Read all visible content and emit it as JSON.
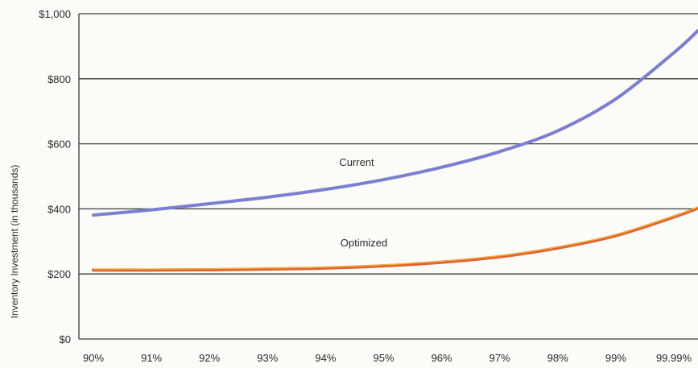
{
  "chart_data": {
    "type": "line",
    "ylabel": "Inventory Investment (in thousands)",
    "xlabel": "",
    "x_tick_labels": [
      "90%",
      "91%",
      "92%",
      "93%",
      "94%",
      "95%",
      "96%",
      "97%",
      "98%",
      "99%",
      "99.99%"
    ],
    "y_tick_labels": [
      "$0",
      "$200",
      "$400",
      "$600",
      "$800",
      "$1,000"
    ],
    "ylim": [
      0,
      1000
    ],
    "grid": true,
    "series": [
      {
        "name": "Current",
        "color": "#7b7fd0",
        "values": [
          381,
          397,
          416,
          436,
          460,
          490,
          528,
          576,
          640,
          738,
          880
        ]
      },
      {
        "name": "Optimized",
        "color": "#e2622d",
        "highlight_color": "#f2b33a",
        "values": [
          212,
          212,
          213,
          215,
          218,
          225,
          236,
          253,
          280,
          318,
          375
        ]
      }
    ]
  }
}
